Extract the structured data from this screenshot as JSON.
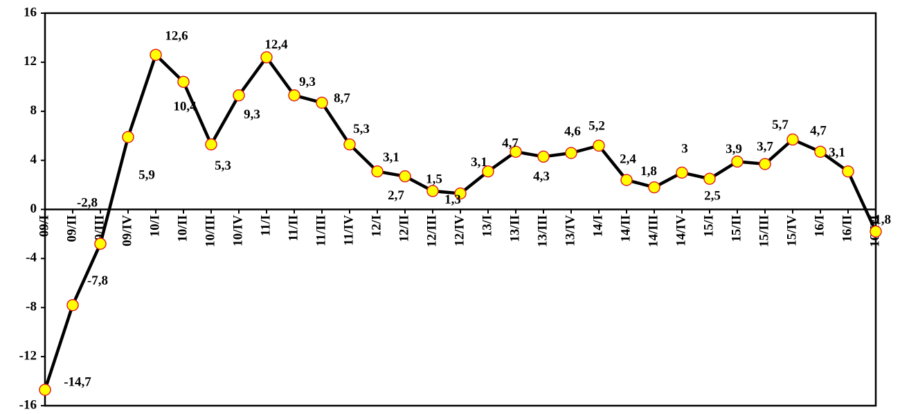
{
  "chart_data": {
    "type": "line",
    "categories": [
      "09/I",
      "09/II",
      "09/III",
      "09/IV",
      "10/I",
      "10/II",
      "10/III",
      "10/IV",
      "11/I",
      "11/II",
      "11/III",
      "11/IV",
      "12/I",
      "12/II",
      "12/III",
      "12/IV",
      "13/I",
      "13/II",
      "13/III",
      "13/IV",
      "14/I",
      "14/II",
      "14/III",
      "14/IV",
      "15/I",
      "15/II",
      "15/III",
      "15/IV",
      "16/I",
      "16/II",
      "16/III"
    ],
    "series": [
      {
        "color": "#000000",
        "marker_fill": "#ffff00",
        "marker_stroke": "#e02020",
        "values": [
          -14.7,
          -7.8,
          -2.8,
          5.9,
          12.6,
          10.4,
          5.3,
          9.3,
          12.4,
          9.3,
          8.7,
          5.3,
          3.1,
          2.7,
          1.5,
          1.3,
          3.1,
          4.7,
          4.3,
          4.6,
          5.2,
          2.4,
          1.8,
          3,
          2.5,
          3.9,
          3.7,
          5.7,
          4.7,
          3.1,
          -1.8
        ],
        "value_labels": [
          "-14,7",
          "-7,8",
          "-2,8",
          "5,9",
          "12,6",
          "10,4",
          "5,3",
          "9,3",
          "12,4",
          "9,3",
          "8,7",
          "5,3",
          "3,1",
          "2,7",
          "1,5",
          "1,3",
          "3,1",
          "4,7",
          "4,3",
          "4,6",
          "5,2",
          "2,4",
          "1,8",
          "3",
          "2,5",
          "3,9",
          "3,7",
          "5,7",
          "4,7",
          "3,1",
          "-1,8"
        ]
      }
    ],
    "ylim": [
      -16,
      16
    ],
    "yticks": [
      -16,
      -12,
      -8,
      -4,
      0,
      4,
      8,
      12,
      16
    ]
  }
}
